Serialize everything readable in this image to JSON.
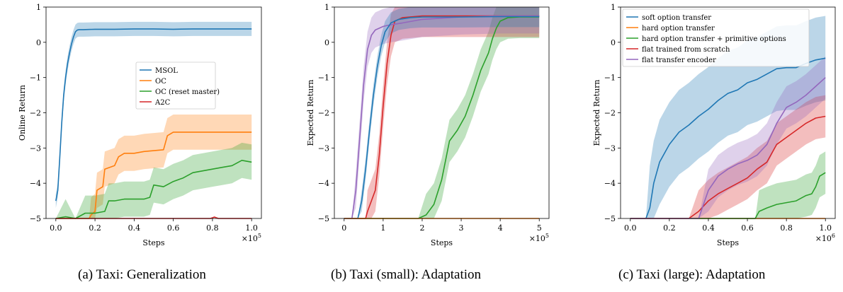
{
  "captions": [
    "(a) Taxi: Generalization",
    "(b) Taxi (small): Adaptation",
    "(c) Taxi (large): Adaptation"
  ],
  "colors": {
    "blue": "#1f77b4",
    "orange": "#ff7f0e",
    "green": "#2ca02c",
    "red": "#d62728",
    "purple": "#9467bd"
  },
  "chart_data": [
    {
      "type": "line",
      "title": "",
      "xlabel": "Steps",
      "ylabel": "Online Return",
      "x_multiplier": "×10^5",
      "xlim": [
        0,
        1.0
      ],
      "ylim": [
        -5,
        1
      ],
      "xticks": [
        "0.0",
        "0.2",
        "0.4",
        "0.6",
        "0.8",
        "1.0"
      ],
      "yticks": [
        "1",
        "0",
        "−1",
        "−2",
        "−3",
        "−4",
        "−5"
      ],
      "legend_position": "center-right",
      "series": [
        {
          "name": "MSOL",
          "color": "#1f77b4",
          "x": [
            0,
            0.01,
            0.02,
            0.03,
            0.04,
            0.05,
            0.06,
            0.07,
            0.08,
            0.09,
            0.1,
            0.11,
            0.12,
            0.14,
            0.2,
            0.3,
            0.4,
            0.5,
            0.6,
            0.7,
            0.8,
            0.9,
            1.0
          ],
          "y": [
            -4.5,
            -4.2,
            -3.3,
            -2.3,
            -1.5,
            -1.0,
            -0.6,
            -0.3,
            -0.05,
            0.15,
            0.3,
            0.35,
            0.36,
            0.36,
            0.37,
            0.37,
            0.38,
            0.38,
            0.37,
            0.38,
            0.38,
            0.38,
            0.38
          ],
          "band": 0.2
        },
        {
          "name": "OC",
          "color": "#ff7f0e",
          "x": [
            0,
            0.17,
            0.18,
            0.2,
            0.21,
            0.24,
            0.25,
            0.3,
            0.32,
            0.35,
            0.4,
            0.45,
            0.55,
            0.57,
            0.6,
            0.7,
            0.8,
            0.9,
            1.0
          ],
          "y": [
            -5,
            -5,
            -4.9,
            -4.8,
            -4.2,
            -4.1,
            -3.6,
            -3.5,
            -3.25,
            -3.15,
            -3.15,
            -3.1,
            -3.05,
            -2.65,
            -2.55,
            -2.55,
            -2.55,
            -2.55,
            -2.55
          ],
          "band": 0.5
        },
        {
          "name": "OC (reset master)",
          "color": "#2ca02c",
          "x": [
            0,
            0.05,
            0.1,
            0.15,
            0.2,
            0.25,
            0.27,
            0.3,
            0.35,
            0.45,
            0.48,
            0.5,
            0.55,
            0.6,
            0.65,
            0.7,
            0.75,
            0.8,
            0.85,
            0.9,
            0.95,
            1.0
          ],
          "y": [
            -5,
            -4.95,
            -5,
            -4.85,
            -4.85,
            -4.8,
            -4.5,
            -4.5,
            -4.45,
            -4.45,
            -4.4,
            -4.05,
            -4.1,
            -3.95,
            -3.85,
            -3.7,
            -3.65,
            -3.6,
            -3.55,
            -3.5,
            -3.35,
            -3.4
          ],
          "band": 0.5
        },
        {
          "name": "A2C",
          "color": "#d62728",
          "x": [
            0,
            0.79,
            0.81,
            0.83,
            1.0
          ],
          "y": [
            -5,
            -5,
            -4.96,
            -5,
            -5
          ],
          "band": 0.02
        }
      ]
    },
    {
      "type": "line",
      "title": "",
      "xlabel": "Steps",
      "ylabel": "Expected Return",
      "x_multiplier": "×10^5",
      "xlim": [
        0,
        5
      ],
      "ylim": [
        -5,
        1
      ],
      "xticks": [
        "0",
        "1",
        "2",
        "3",
        "4",
        "5"
      ],
      "yticks": [
        "1",
        "0",
        "−1",
        "−2",
        "−3",
        "−4",
        "−5"
      ],
      "series": [
        {
          "name": "",
          "color": "#2ca02c",
          "x": [
            0,
            1.7,
            1.9,
            2.1,
            2.3,
            2.5,
            2.7,
            2.9,
            3.1,
            3.3,
            3.5,
            3.7,
            3.8,
            3.9,
            4.0,
            4.2,
            4.5,
            5.0
          ],
          "y": [
            -5,
            -5,
            -5,
            -4.9,
            -4.6,
            -3.9,
            -2.8,
            -2.5,
            -2.1,
            -1.5,
            -0.8,
            -0.3,
            0.1,
            0.4,
            0.6,
            0.7,
            0.72,
            0.72
          ],
          "band": 0.6
        },
        {
          "name": "",
          "color": "#d62728",
          "x": [
            0,
            0.55,
            0.6,
            0.7,
            0.8,
            0.9,
            1.0,
            1.1,
            1.2,
            1.3,
            1.5,
            2.0,
            3.0,
            4.0,
            5.0
          ],
          "y": [
            -5,
            -5,
            -4.8,
            -4.5,
            -4.2,
            -3.2,
            -1.8,
            -0.6,
            0.2,
            0.6,
            0.7,
            0.75,
            0.75,
            0.75,
            0.75
          ],
          "band": 0.6
        },
        {
          "name": "",
          "color": "#9467bd",
          "x": [
            0,
            0.2,
            0.3,
            0.4,
            0.5,
            0.6,
            0.7,
            0.8,
            0.9,
            1.0,
            1.2,
            1.5,
            2.0,
            3.0,
            4.0,
            5.0
          ],
          "y": [
            -5,
            -5,
            -4.2,
            -2.7,
            -1.2,
            -0.2,
            0.2,
            0.35,
            0.4,
            0.45,
            0.5,
            0.55,
            0.65,
            0.72,
            0.75,
            0.75
          ],
          "band": 0.5
        },
        {
          "name": "",
          "color": "#1f77b4",
          "x": [
            0,
            0.35,
            0.45,
            0.55,
            0.65,
            0.75,
            0.85,
            0.95,
            1.05,
            1.2,
            1.4,
            1.7,
            2.0,
            3.0,
            4.0,
            5.0
          ],
          "y": [
            -5,
            -5,
            -4.5,
            -3.6,
            -2.5,
            -1.5,
            -0.7,
            -0.1,
            0.3,
            0.55,
            0.65,
            0.7,
            0.72,
            0.72,
            0.73,
            0.73
          ],
          "band": 0.3
        },
        {
          "name": "",
          "color": "#ff7f0e",
          "x": [
            0,
            5.0
          ],
          "y": [
            -5,
            -5
          ],
          "band": 0
        }
      ]
    },
    {
      "type": "line",
      "title": "",
      "xlabel": "Steps",
      "ylabel": "Expected Return",
      "x_multiplier": "×10^6",
      "xlim": [
        0,
        1.0
      ],
      "ylim": [
        -5,
        1
      ],
      "xticks": [
        "0.0",
        "0.2",
        "0.4",
        "0.6",
        "0.8",
        "1.0"
      ],
      "yticks": [
        "1",
        "0",
        "−1",
        "−2",
        "−3",
        "−4",
        "−5"
      ],
      "legend_position": "top-left",
      "series": [
        {
          "name": "soft option transfer",
          "color": "#1f77b4",
          "x": [
            0,
            0.08,
            0.1,
            0.12,
            0.15,
            0.2,
            0.25,
            0.3,
            0.35,
            0.4,
            0.45,
            0.5,
            0.55,
            0.6,
            0.65,
            0.7,
            0.75,
            0.8,
            0.85,
            0.9,
            0.95,
            1.0
          ],
          "y": [
            -5,
            -5,
            -4.7,
            -4.0,
            -3.4,
            -2.9,
            -2.55,
            -2.35,
            -2.1,
            -1.9,
            -1.65,
            -1.45,
            -1.35,
            -1.15,
            -1.05,
            -0.9,
            -0.75,
            -0.72,
            -0.72,
            -0.6,
            -0.5,
            -0.45
          ],
          "band": 1.2
        },
        {
          "name": "hard option transfer",
          "color": "#ff7f0e",
          "x": [
            0,
            1.0
          ],
          "y": [
            -5,
            -5
          ],
          "band": 0
        },
        {
          "name": "hard option transfer + primitive options",
          "color": "#2ca02c",
          "x": [
            0,
            0.64,
            0.66,
            0.7,
            0.75,
            0.8,
            0.85,
            0.9,
            0.93,
            0.95,
            0.97,
            1.0
          ],
          "y": [
            -5,
            -5,
            -4.8,
            -4.7,
            -4.6,
            -4.55,
            -4.5,
            -4.35,
            -4.3,
            -4.1,
            -3.8,
            -3.7
          ],
          "band": 0.6
        },
        {
          "name": "flat trained from scratch",
          "color": "#d62728",
          "x": [
            0,
            0.3,
            0.35,
            0.4,
            0.45,
            0.5,
            0.55,
            0.6,
            0.65,
            0.7,
            0.75,
            0.8,
            0.85,
            0.9,
            0.95,
            1.0
          ],
          "y": [
            -5,
            -5,
            -4.8,
            -4.5,
            -4.3,
            -4.15,
            -4.0,
            -3.85,
            -3.6,
            -3.4,
            -2.9,
            -2.7,
            -2.5,
            -2.3,
            -2.15,
            -2.1
          ],
          "band": 0.6
        },
        {
          "name": "flat transfer encoder",
          "color": "#9467bd",
          "x": [
            0,
            0.35,
            0.4,
            0.45,
            0.5,
            0.55,
            0.6,
            0.65,
            0.7,
            0.75,
            0.8,
            0.85,
            0.9,
            0.95,
            1.0
          ],
          "y": [
            -5,
            -5,
            -4.2,
            -3.8,
            -3.6,
            -3.45,
            -3.35,
            -3.2,
            -2.9,
            -2.3,
            -1.85,
            -1.7,
            -1.5,
            -1.25,
            -1.0
          ],
          "band": 0.6
        }
      ]
    }
  ]
}
